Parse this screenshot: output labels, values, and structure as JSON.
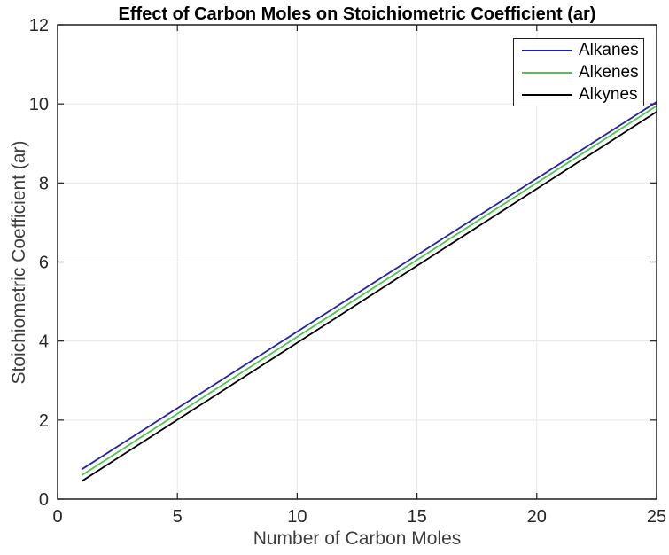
{
  "chart_data": {
    "type": "line",
    "title": "Effect of Carbon Moles on Stoichiometric Coefficient (ar)",
    "xlabel": "Number of Carbon Moles",
    "ylabel": "Stoichiometric Coefficient (ar)",
    "xlim": [
      0,
      25
    ],
    "ylim": [
      0,
      12
    ],
    "xticks": [
      0,
      5,
      10,
      15,
      20,
      25
    ],
    "yticks": [
      0,
      2,
      4,
      6,
      8,
      10,
      12
    ],
    "grid": true,
    "colors": {
      "background": "#ffffff",
      "grid": "#e6e6e6",
      "axis": "#1f1f1f",
      "tick_label": "#262626"
    },
    "legend": {
      "position": "top-right-inside",
      "border_color": "#1f1f1f"
    },
    "series": [
      {
        "name": "Alkanes",
        "color": "#2121b0",
        "x": [
          1,
          25
        ],
        "y": [
          0.75,
          10.05
        ]
      },
      {
        "name": "Alkenes",
        "color": "#4cc64c",
        "x": [
          1,
          25
        ],
        "y": [
          0.6,
          9.95
        ]
      },
      {
        "name": "Alkynes",
        "color": "#000000",
        "x": [
          1,
          25
        ],
        "y": [
          0.45,
          9.8
        ]
      }
    ]
  }
}
